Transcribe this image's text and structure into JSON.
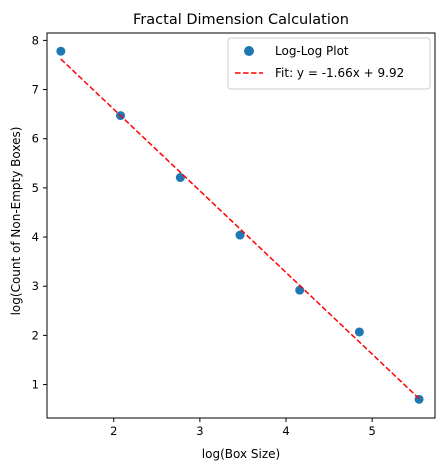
{
  "chart_data": {
    "type": "scatter",
    "title": "Fractal Dimension Calculation",
    "xlabel": "log(Box Size)",
    "ylabel": "log(Count of Non-Empty Boxes)",
    "xlim": [
      1.225,
      5.73
    ],
    "ylim": [
      0.32,
      8.15
    ],
    "x_ticks": [
      2,
      3,
      4,
      5
    ],
    "y_ticks": [
      1,
      2,
      3,
      4,
      5,
      6,
      7,
      8
    ],
    "grid": false,
    "legend_position": "top-right",
    "series": [
      {
        "name": "Log-Log Plot",
        "kind": "scatter",
        "color": "#1f77b4",
        "x": [
          1.386,
          2.079,
          2.773,
          3.466,
          4.159,
          4.852,
          5.545
        ],
        "y": [
          7.78,
          6.47,
          5.21,
          4.04,
          2.92,
          2.07,
          0.7
        ]
      },
      {
        "name": "Fit: y = -1.66x + 9.92",
        "kind": "line",
        "style": "dashed",
        "color": "#ff0000",
        "slope": -1.66,
        "intercept": 9.92,
        "x_range": [
          1.386,
          5.545
        ]
      }
    ]
  }
}
